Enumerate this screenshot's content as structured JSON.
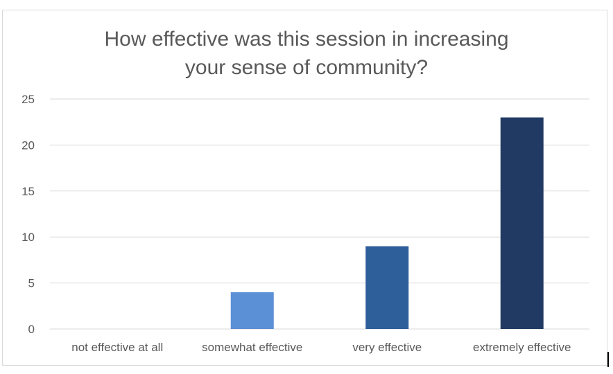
{
  "chart_data": {
    "type": "bar",
    "title_lines": [
      "How effective was this session in increasing",
      "your sense of community?"
    ],
    "categories": [
      "not effective at all",
      "somewhat effective",
      "very effective",
      "extremely effective"
    ],
    "values": [
      0,
      4,
      9,
      23
    ],
    "colors": [
      "#5b8fd6",
      "#5b8fd6",
      "#2f5f9b",
      "#203a63"
    ],
    "ylim": [
      0,
      25
    ],
    "yticks": [
      0,
      5,
      10,
      15,
      20,
      25
    ],
    "grid": true,
    "xlabel": "",
    "ylabel": ""
  },
  "colors": {
    "grid": "#d9d9d9",
    "axis_text": "#595959",
    "title": "#595959"
  }
}
